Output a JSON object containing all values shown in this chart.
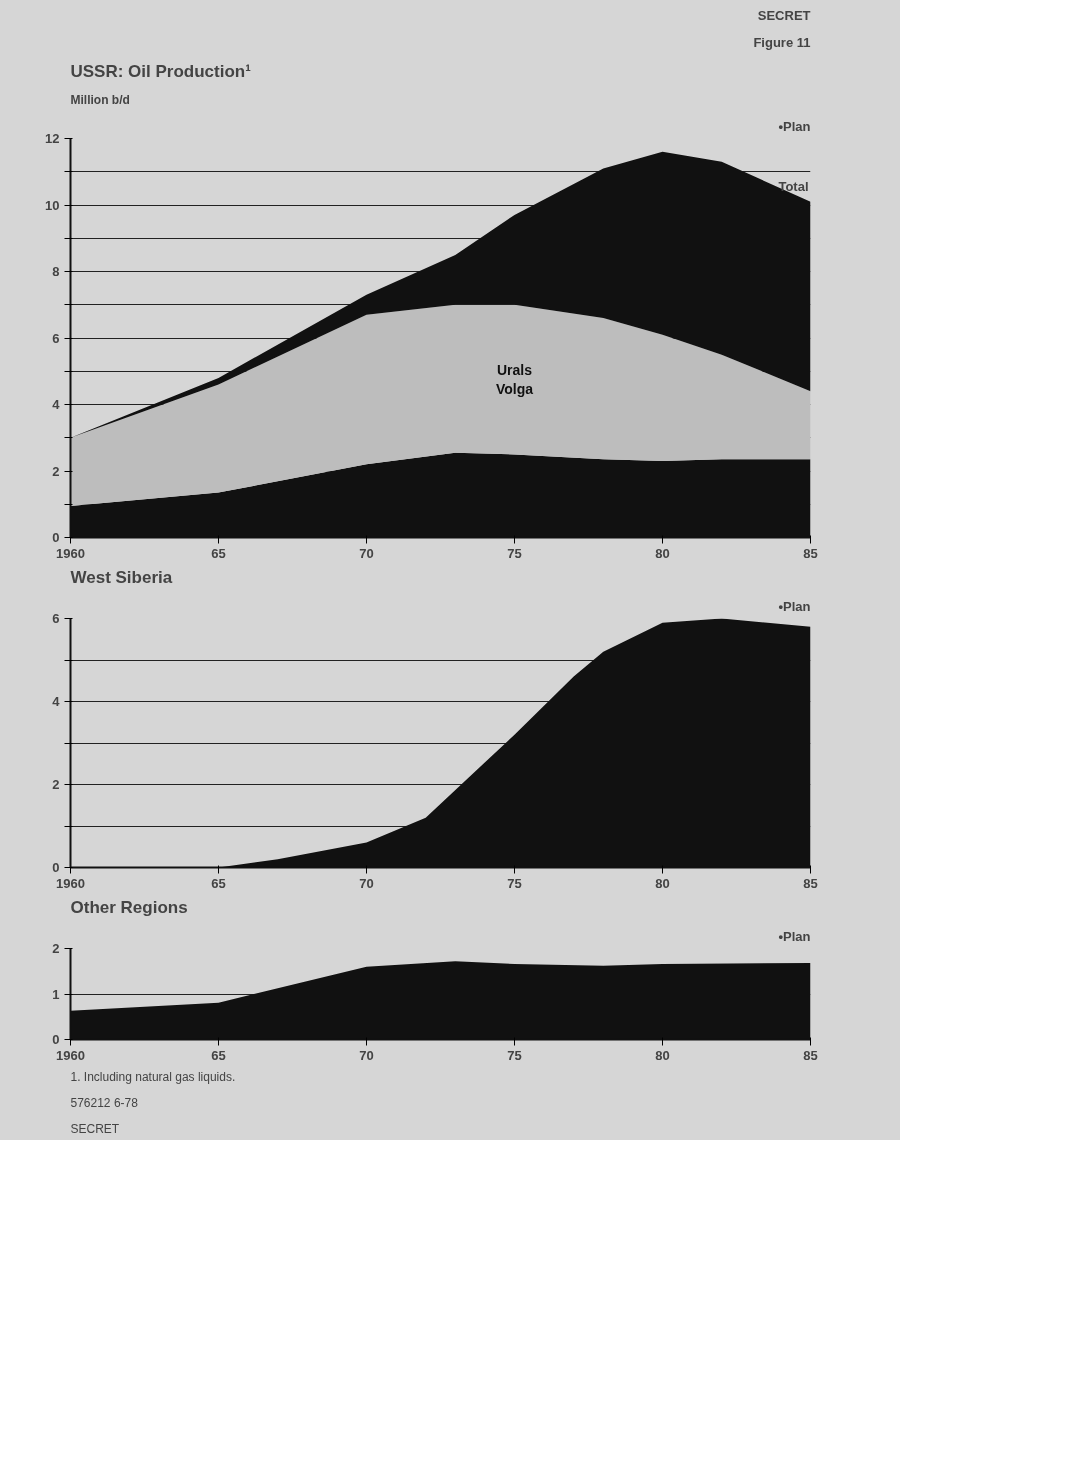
{
  "chart_data": [
    {
      "type": "area",
      "title": "USSR: Oil Production¹",
      "ylabel": "Million b/d",
      "stacked": true,
      "grid": "y",
      "x": [
        1960,
        1965,
        1970,
        1973,
        1975,
        1978,
        1980,
        1982,
        1985
      ],
      "series": [
        {
          "color": "#111111",
          "values": [
            0.95,
            1.35,
            2.2,
            2.55,
            2.5,
            2.35,
            2.3,
            2.35,
            2.35
          ]
        },
        {
          "name": "Urals\nVolga",
          "color": "#bdbdbd",
          "values": [
            2.05,
            3.25,
            4.5,
            4.45,
            4.5,
            4.25,
            3.8,
            3.15,
            2.05
          ]
        },
        {
          "color": "#111111",
          "values": [
            0,
            0.2,
            0.6,
            1.5,
            2.7,
            4.5,
            5.5,
            5.8,
            5.7
          ]
        }
      ],
      "xlim": [
        1960,
        1985
      ],
      "xticks": [
        {
          "value": 1960,
          "label": "1960"
        },
        {
          "value": 1965,
          "label": "65"
        },
        {
          "value": 1970,
          "label": "70"
        },
        {
          "value": 1975,
          "label": "75"
        },
        {
          "value": 1980,
          "label": "80"
        },
        {
          "value": 1985,
          "label": "85"
        }
      ],
      "ylim": [
        0,
        12
      ],
      "yticks": [
        0,
        {
          "value": 1,
          "label": null
        },
        2,
        {
          "value": 3,
          "label": null
        },
        4,
        {
          "value": 5,
          "label": null
        },
        6,
        {
          "value": 7,
          "label": null
        },
        8,
        {
          "value": 9,
          "label": null
        },
        10,
        {
          "value": 11,
          "label": null
        },
        12
      ],
      "annotations": [
        "SECRET",
        "Figure 11",
        "•Plan",
        {
          "text": "Total",
          "x": 1985,
          "y": 10.1
        }
      ]
    },
    {
      "type": "area",
      "title": "West Siberia",
      "grid": "y",
      "series": [
        {
          "color": "#111111",
          "x": [
            1965,
            1967,
            1970,
            1972,
            1975,
            1977,
            1978,
            1980,
            1982,
            1985
          ],
          "values": [
            0,
            0.2,
            0.6,
            1.2,
            3.2,
            4.6,
            5.2,
            5.9,
            6.0,
            5.8
          ]
        }
      ],
      "xlim": [
        1960,
        1985
      ],
      "xticks": [
        {
          "value": 1960,
          "label": "1960"
        },
        {
          "value": 1965,
          "label": "65"
        },
        {
          "value": 1970,
          "label": "70"
        },
        {
          "value": 1975,
          "label": "75"
        },
        {
          "value": 1980,
          "label": "80"
        },
        {
          "value": 1985,
          "label": "85"
        }
      ],
      "ylim": [
        0,
        6
      ],
      "yticks": [
        0,
        {
          "value": 1,
          "label": null
        },
        2,
        {
          "value": 3,
          "label": null
        },
        4,
        {
          "value": 5,
          "label": null
        },
        6
      ],
      "annotations": [
        "•Plan"
      ]
    },
    {
      "type": "area",
      "title": "Other Regions",
      "grid": "y",
      "x": [
        1960,
        1965,
        1970,
        1973,
        1975,
        1978,
        1980,
        1985
      ],
      "series": [
        {
          "color": "#111111",
          "values": [
            0.63,
            0.81,
            1.6,
            1.72,
            1.66,
            1.62,
            1.66,
            1.68
          ]
        }
      ],
      "xlim": [
        1960,
        1985
      ],
      "xticks": [
        {
          "value": 1960,
          "label": "1960"
        },
        {
          "value": 1965,
          "label": "65"
        },
        {
          "value": 1970,
          "label": "70"
        },
        {
          "value": 1975,
          "label": "75"
        },
        {
          "value": 1980,
          "label": "80"
        },
        {
          "value": 1985,
          "label": "85"
        }
      ],
      "ylim": [
        0,
        2
      ],
      "yticks": [
        0,
        1,
        2
      ],
      "annotations": [
        "•Plan",
        "1. Including natural gas liquids.",
        "576212 6-78",
        "SECRET"
      ]
    }
  ]
}
